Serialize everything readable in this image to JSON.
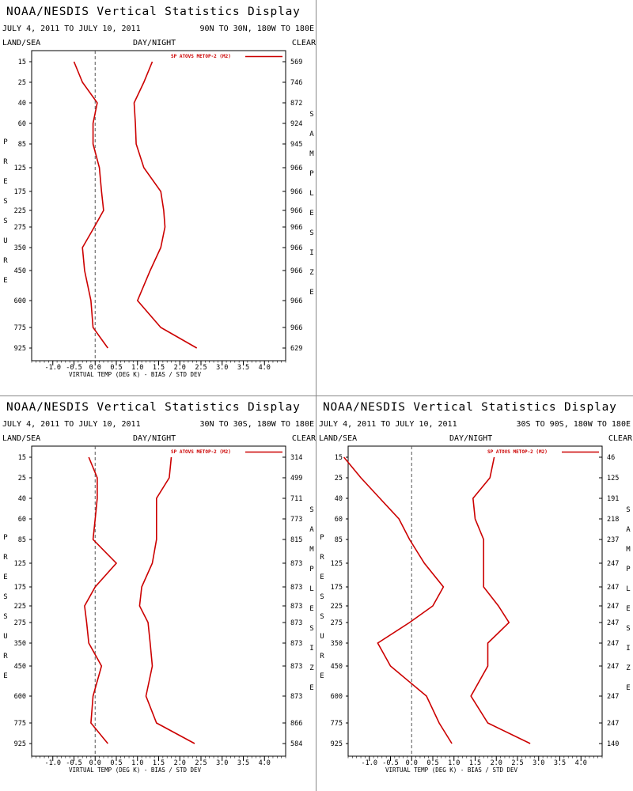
{
  "panels": [
    {
      "title": "NOAA/NESDIS Vertical Statistics Display",
      "date_range": "JULY 4, 2011 TO JULY 10, 2011",
      "region": "90N TO 30N, 180W TO 180E"
    },
    {
      "title": "NOAA/NESDIS Vertical Statistics Display",
      "date_range": "JULY 4, 2011 TO JULY 10, 2011",
      "region": "30N TO 30S, 180W TO 180E"
    },
    {
      "title": "NOAA/NESDIS Vertical Statistics Display",
      "date_range": "JULY 4, 2011 TO JULY 10, 2011",
      "region": "30S TO 90S, 180W TO 180E"
    }
  ],
  "labels": {
    "land_sea": "LAND/SEA",
    "day_night": "DAY/NIGHT",
    "clear": "CLEAR",
    "xlabel": "VIRTUAL TEMP (DEG K) - BIAS / STD DEV",
    "left_axis": "PRESSURE",
    "right_axis": "SAMPLE SIZE",
    "legend": "SP ATOVS METOP-2 (M2)"
  },
  "colors": {
    "series": "#cc0000",
    "axis": "#000000",
    "zero_line": "#555555",
    "divider": "#888888"
  },
  "chart_data": [
    {
      "type": "line",
      "pressure_levels": [
        15,
        25,
        40,
        60,
        85,
        125,
        175,
        225,
        275,
        350,
        450,
        600,
        775,
        925
      ],
      "x_ticks": [
        "-1.0",
        "-0.5",
        "0.0",
        "0.5",
        "1.0",
        "1.5",
        "2.0",
        "2.5",
        "3.0",
        "3.5",
        "4.0"
      ],
      "xlim": [
        -1.5,
        4.5
      ],
      "series": [
        {
          "role": "bias",
          "values": [
            -0.5,
            -0.3,
            0.05,
            -0.05,
            -0.05,
            0.1,
            0.15,
            0.2,
            -0.02,
            -0.3,
            -0.25,
            -0.1,
            -0.05,
            0.3
          ]
        },
        {
          "role": "std_dev",
          "values": [
            1.35,
            1.15,
            0.92,
            0.95,
            0.97,
            1.15,
            1.55,
            1.62,
            1.65,
            1.55,
            1.3,
            1.0,
            1.55,
            2.4
          ]
        }
      ],
      "sample_size": [
        "569",
        "746",
        "872",
        "924",
        "945",
        "966",
        "966",
        "966",
        "966",
        "966",
        "966",
        "966",
        "966",
        "629"
      ]
    },
    {
      "type": "line",
      "pressure_levels": [
        15,
        25,
        40,
        60,
        85,
        125,
        175,
        225,
        275,
        350,
        450,
        600,
        775,
        925
      ],
      "x_ticks": [
        "-1.0",
        "-0.5",
        "0.0",
        "0.5",
        "1.0",
        "1.5",
        "2.0",
        "2.5",
        "3.0",
        "3.5",
        "4.0"
      ],
      "xlim": [
        -1.5,
        4.5
      ],
      "series": [
        {
          "role": "bias",
          "values": [
            -0.15,
            0.05,
            0.05,
            0.0,
            -0.05,
            0.5,
            0.0,
            -0.25,
            -0.2,
            -0.15,
            0.15,
            -0.05,
            -0.1,
            0.3
          ]
        },
        {
          "role": "std_dev",
          "values": [
            1.8,
            1.75,
            1.45,
            1.45,
            1.45,
            1.35,
            1.1,
            1.05,
            1.25,
            1.3,
            1.35,
            1.2,
            1.45,
            2.35
          ]
        }
      ],
      "sample_size": [
        "314",
        "499",
        "711",
        "773",
        "815",
        "873",
        "873",
        "873",
        "873",
        "873",
        "873",
        "873",
        "866",
        "584"
      ]
    },
    {
      "type": "line",
      "pressure_levels": [
        15,
        25,
        40,
        60,
        85,
        125,
        175,
        225,
        275,
        350,
        450,
        600,
        775,
        925
      ],
      "x_ticks": [
        "-1.0",
        "-0.5",
        "0.0",
        "0.5",
        "1.0",
        "1.5",
        "2.0",
        "2.5",
        "3.0",
        "3.5",
        "4.0"
      ],
      "xlim": [
        -1.5,
        4.5
      ],
      "series": [
        {
          "role": "bias",
          "values": [
            -1.6,
            -1.2,
            -0.75,
            -0.3,
            -0.05,
            0.3,
            0.75,
            0.5,
            -0.05,
            -0.8,
            -0.5,
            0.35,
            0.65,
            0.95
          ]
        },
        {
          "role": "std_dev",
          "values": [
            1.95,
            1.85,
            1.45,
            1.5,
            1.7,
            1.7,
            1.7,
            2.05,
            2.3,
            1.8,
            1.8,
            1.4,
            1.8,
            2.8
          ]
        }
      ],
      "sample_size": [
        "46",
        "125",
        "191",
        "218",
        "237",
        "247",
        "247",
        "247",
        "247",
        "247",
        "247",
        "247",
        "247",
        "140"
      ]
    }
  ]
}
